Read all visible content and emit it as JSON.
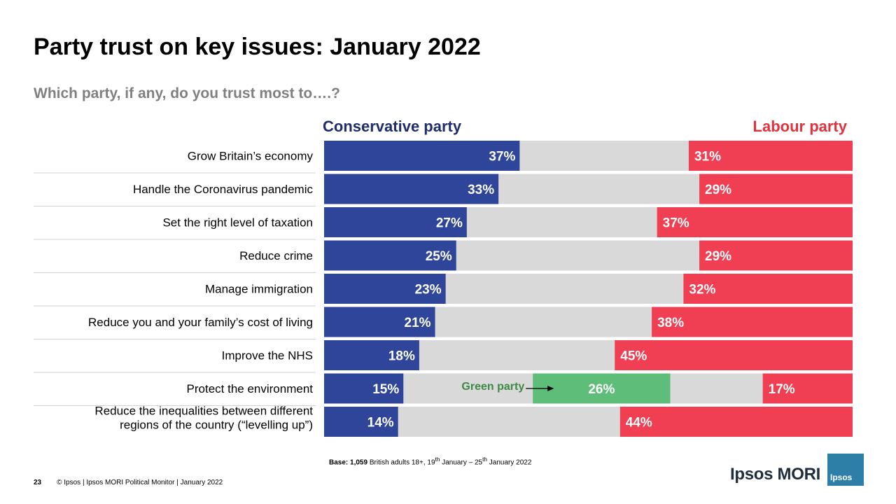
{
  "title": "Party trust on key issues: January 2022",
  "subtitle": "Which party, if any, do you trust most to….?",
  "chart_data": {
    "type": "bar",
    "orientation": "horizontal-stacked",
    "title": "Party trust on key issues: January 2022",
    "categories": [
      "Grow Britain’s economy",
      "Handle the Coronavirus pandemic",
      "Set the right level of taxation",
      "Reduce crime",
      "Manage immigration",
      "Reduce you and your family’s cost of living",
      "Improve the NHS",
      "Protect the environment",
      [
        "Reduce the inequalities between different",
        "regions of the country (“levelling up”)"
      ]
    ],
    "series": [
      {
        "name": "Conservative party",
        "color": "#2e4599",
        "anchor": "left",
        "values": [
          37,
          33,
          27,
          25,
          23,
          21,
          18,
          15,
          14
        ]
      },
      {
        "name": "Labour party",
        "color": "#f03e52",
        "anchor": "right",
        "values": [
          31,
          29,
          37,
          29,
          32,
          38,
          45,
          17,
          44
        ]
      },
      {
        "name": "Green party",
        "color": "#5ebd78",
        "anchor": "after-conservative-gap",
        "values": [
          null,
          null,
          null,
          null,
          null,
          null,
          null,
          26,
          null
        ]
      }
    ],
    "total_scale": 100,
    "background_color": "#d9d9d9",
    "value_suffix": "%",
    "green_label": "Green party"
  },
  "legend": {
    "conservative": "Conservative party",
    "labour": "Labour party"
  },
  "base_note": {
    "bold": "Base:",
    "n": " 1,059",
    "rest": " British adults 18+, 19",
    "sup1": "th",
    "mid": " January – 25",
    "sup2": "th",
    "end": " January 2022"
  },
  "footer": {
    "page": "23",
    "text": "© Ipsos | Ipsos MORI Political Monitor | January 2022"
  },
  "logo": {
    "text": "Ipsos MORI",
    "box_text": "Ipsos"
  },
  "colors": {
    "conservative": "#2e4599",
    "labour": "#f03e52",
    "green": "#5ebd78",
    "bg": "#d9d9d9"
  }
}
